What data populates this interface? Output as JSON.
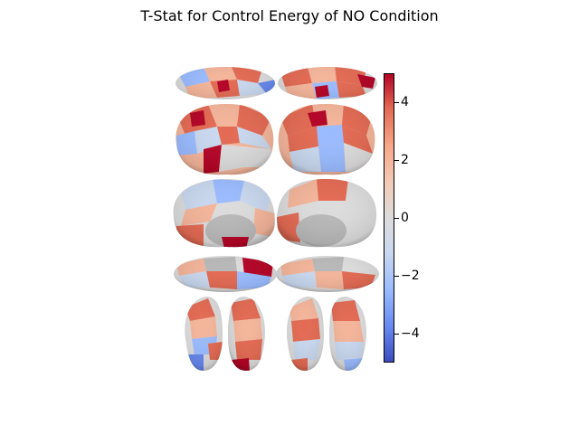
{
  "title": "T-Stat for Control Energy of NO Condition",
  "colorbar": {
    "min": -5,
    "max": 5,
    "colormap": "coolwarm",
    "ticks": [
      {
        "value": 4,
        "label": "4"
      },
      {
        "value": 2,
        "label": "2"
      },
      {
        "value": 0,
        "label": "0"
      },
      {
        "value": -2,
        "label": "−2"
      },
      {
        "value": -4,
        "label": "−4"
      }
    ]
  },
  "colors": {
    "strong_positive": "#b40426",
    "positive": "#e36a53",
    "weak_positive": "#f4b59a",
    "neutral": "#dddcdc",
    "weak_negative": "#c9d8ef",
    "negative": "#9abbff",
    "strong_negative": "#6788ee",
    "surface_shade": "#b8b8b8"
  }
}
